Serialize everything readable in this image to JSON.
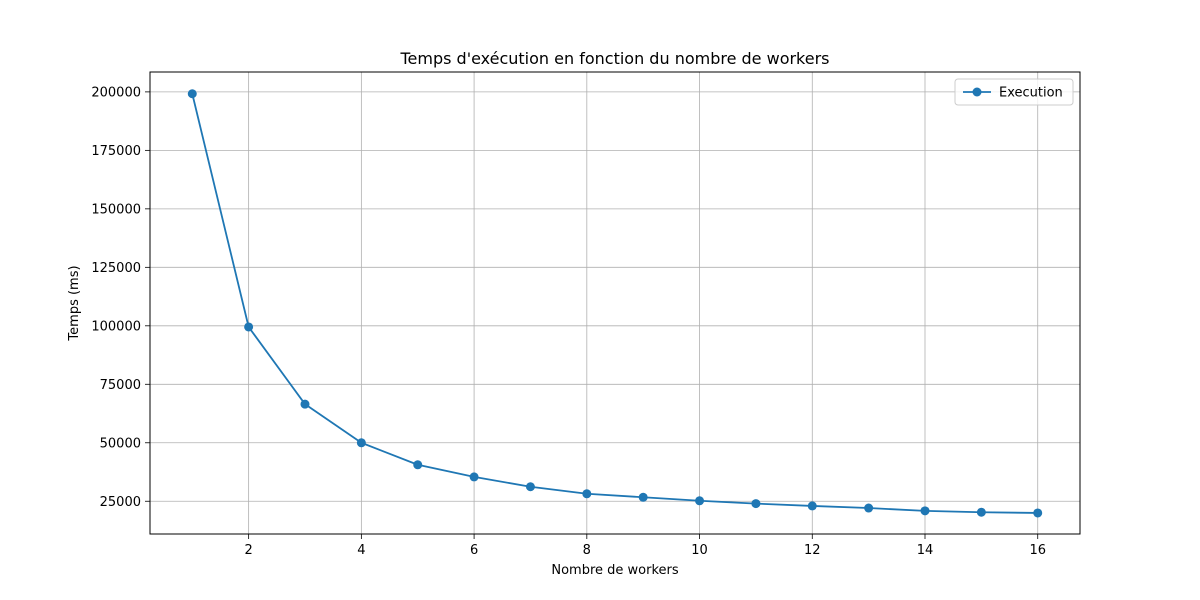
{
  "chart_data": {
    "type": "line",
    "title": "Temps d'exécution en fonction du nombre de workers",
    "xlabel": "Nombre de workers",
    "ylabel": "Temps (ms)",
    "xlim": [
      0.25,
      16.75
    ],
    "ylim": [
      11000,
      208500
    ],
    "xticks": [
      2,
      4,
      6,
      8,
      10,
      12,
      14,
      16
    ],
    "yticks": [
      25000,
      50000,
      75000,
      100000,
      125000,
      150000,
      175000,
      200000
    ],
    "grid": true,
    "legend_position": "top-right",
    "series": [
      {
        "name": "Execution",
        "color": "#1f77b4",
        "marker": "circle",
        "x": [
          1,
          2,
          3,
          4,
          5,
          6,
          7,
          8,
          9,
          10,
          11,
          12,
          13,
          14,
          15,
          16
        ],
        "y": [
          199200,
          99500,
          66500,
          50000,
          40600,
          35400,
          31200,
          28200,
          26700,
          25200,
          24000,
          23000,
          22100,
          20900,
          20300,
          20000
        ]
      }
    ]
  }
}
